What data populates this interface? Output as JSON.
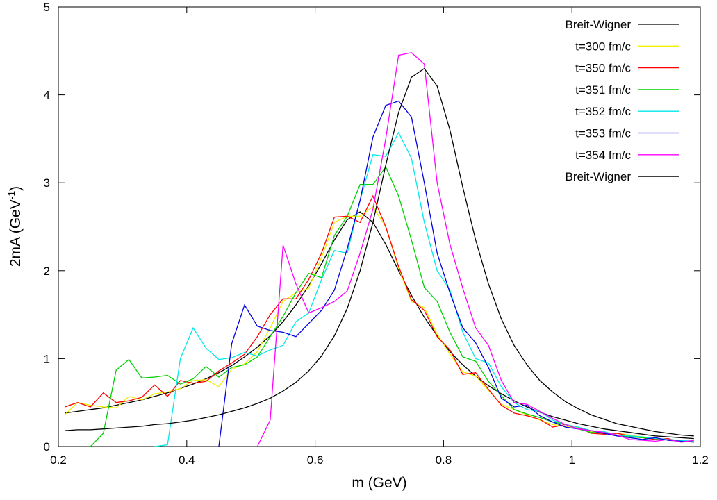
{
  "chart_data": {
    "type": "line",
    "x_label": "m (GeV)",
    "y_label": {
      "text": "2mA (GeV",
      "superscript": "-1",
      "suffix": ")"
    },
    "xlim": [
      0.2,
      1.2
    ],
    "xticks": [
      0.2,
      0.4,
      0.6,
      0.8,
      1,
      1.2
    ],
    "ylim": [
      0,
      5
    ],
    "yticks": [
      0,
      1,
      2,
      3,
      4,
      5
    ],
    "grid": false,
    "legend": "top-right",
    "x": [
      0.21,
      0.23,
      0.25,
      0.27,
      0.29,
      0.31,
      0.33,
      0.35,
      0.37,
      0.39,
      0.41,
      0.43,
      0.45,
      0.47,
      0.49,
      0.51,
      0.53,
      0.55,
      0.57,
      0.59,
      0.61,
      0.63,
      0.65,
      0.67,
      0.69,
      0.71,
      0.73,
      0.75,
      0.77,
      0.79,
      0.81,
      0.83,
      0.85,
      0.87,
      0.89,
      0.91,
      0.93,
      0.95,
      0.97,
      0.99,
      1.01,
      1.03,
      1.05,
      1.07,
      1.09,
      1.11,
      1.13,
      1.15,
      1.17,
      1.19
    ],
    "series": [
      {
        "name": "Breit-Wigner",
        "color": "#000000",
        "values": [
          0.38,
          0.4,
          0.42,
          0.44,
          0.47,
          0.5,
          0.53,
          0.57,
          0.61,
          0.66,
          0.71,
          0.77,
          0.84,
          0.92,
          1.02,
          1.13,
          1.26,
          1.42,
          1.61,
          1.83,
          2.08,
          2.35,
          2.58,
          2.67,
          2.55,
          2.3,
          2.0,
          1.72,
          1.47,
          1.26,
          1.08,
          0.93,
          0.8,
          0.69,
          0.6,
          0.52,
          0.45,
          0.39,
          0.34,
          0.3,
          0.26,
          0.23,
          0.2,
          0.18,
          0.16,
          0.14,
          0.12,
          0.11,
          0.1,
          0.09
        ]
      },
      {
        "name": "t=300 fm/c",
        "color": "#f0f000",
        "values": [
          0.36,
          0.5,
          0.47,
          0.45,
          0.44,
          0.57,
          0.53,
          0.6,
          0.62,
          0.66,
          0.75,
          0.76,
          0.68,
          0.88,
          0.94,
          1.08,
          1.35,
          1.65,
          1.75,
          1.8,
          2.15,
          2.55,
          2.62,
          2.62,
          2.73,
          2.5,
          2.03,
          1.65,
          1.58,
          1.28,
          1.05,
          0.85,
          0.8,
          0.64,
          0.48,
          0.42,
          0.36,
          0.3,
          0.25,
          0.23,
          0.21,
          0.17,
          0.14,
          0.15,
          0.13,
          0.11,
          0.09,
          0.08,
          0.06,
          0.05
        ]
      },
      {
        "name": "t=350 fm/c",
        "color": "#ff0000",
        "values": [
          0.45,
          0.5,
          0.45,
          0.61,
          0.5,
          0.52,
          0.56,
          0.7,
          0.57,
          0.75,
          0.72,
          0.74,
          0.86,
          0.95,
          1.05,
          1.25,
          1.5,
          1.68,
          1.68,
          1.9,
          2.2,
          2.61,
          2.62,
          2.55,
          2.85,
          2.5,
          2.05,
          1.67,
          1.55,
          1.25,
          1.1,
          0.82,
          0.84,
          0.65,
          0.47,
          0.38,
          0.35,
          0.31,
          0.22,
          0.25,
          0.22,
          0.15,
          0.14,
          0.15,
          0.12,
          0.1,
          0.08,
          0.09,
          0.05,
          0.06
        ]
      },
      {
        "name": "t=351 fm/c",
        "color": "#00d000",
        "values": [
          null,
          null,
          0,
          0.15,
          0.87,
          0.99,
          0.78,
          0.79,
          0.81,
          0.71,
          0.77,
          0.91,
          0.79,
          0.9,
          0.93,
          1.02,
          1.25,
          1.48,
          1.75,
          1.97,
          1.92,
          2.4,
          2.62,
          2.98,
          2.98,
          3.18,
          2.85,
          2.35,
          1.81,
          1.65,
          1.3,
          1.02,
          0.97,
          0.74,
          0.58,
          0.42,
          0.37,
          0.33,
          0.28,
          0.25,
          0.2,
          0.16,
          0.15,
          0.13,
          0.11,
          0.1,
          0.09,
          0.08,
          0.06,
          0.05
        ]
      },
      {
        "name": "t=352 fm/c",
        "color": "#00e8e8",
        "values": [
          null,
          null,
          null,
          null,
          null,
          null,
          null,
          0,
          0.02,
          1.0,
          1.35,
          1.12,
          0.99,
          1.01,
          1.07,
          1.03,
          1.1,
          1.15,
          1.42,
          1.52,
          1.9,
          2.23,
          2.2,
          2.8,
          3.32,
          3.3,
          3.57,
          3.28,
          2.55,
          2.0,
          1.78,
          1.3,
          1.0,
          0.95,
          0.68,
          0.5,
          0.42,
          0.4,
          0.3,
          0.25,
          0.22,
          0.18,
          0.17,
          0.13,
          0.12,
          0.11,
          0.09,
          0.08,
          0.07,
          0.06
        ]
      },
      {
        "name": "t=353 fm/c",
        "color": "#0000e0",
        "values": [
          null,
          null,
          null,
          null,
          null,
          null,
          null,
          null,
          null,
          null,
          null,
          null,
          0,
          1.17,
          1.61,
          1.37,
          1.32,
          1.3,
          1.25,
          1.4,
          1.55,
          1.78,
          2.25,
          2.8,
          3.52,
          3.88,
          3.93,
          3.75,
          3.0,
          2.2,
          1.75,
          1.35,
          1.18,
          0.9,
          0.55,
          0.45,
          0.47,
          0.35,
          0.28,
          0.22,
          0.2,
          0.18,
          0.15,
          0.12,
          0.1,
          0.08,
          0.1,
          0.07,
          0.06,
          0.05
        ]
      },
      {
        "name": "t=354 fm/c",
        "color": "#ff00ff",
        "values": [
          null,
          null,
          null,
          null,
          null,
          null,
          null,
          null,
          null,
          null,
          null,
          null,
          null,
          null,
          null,
          0,
          0.3,
          2.29,
          1.85,
          1.52,
          1.58,
          1.65,
          1.77,
          2.2,
          2.7,
          3.5,
          4.45,
          4.48,
          4.35,
          3.0,
          2.3,
          1.8,
          1.35,
          1.15,
          0.75,
          0.5,
          0.48,
          0.4,
          0.32,
          0.25,
          0.2,
          0.18,
          0.16,
          0.13,
          0.08,
          0.07,
          0.06,
          0.08,
          0.05,
          0.07
        ]
      },
      {
        "name": "Breit-Wigner",
        "color": "#000000",
        "values": [
          0.18,
          0.19,
          0.19,
          0.2,
          0.21,
          0.22,
          0.23,
          0.25,
          0.26,
          0.28,
          0.3,
          0.33,
          0.36,
          0.4,
          0.44,
          0.49,
          0.55,
          0.63,
          0.73,
          0.86,
          1.03,
          1.26,
          1.57,
          2.0,
          2.55,
          3.2,
          3.8,
          4.2,
          4.3,
          4.1,
          3.6,
          2.95,
          2.35,
          1.85,
          1.45,
          1.15,
          0.93,
          0.75,
          0.62,
          0.51,
          0.43,
          0.36,
          0.31,
          0.26,
          0.23,
          0.2,
          0.17,
          0.15,
          0.13,
          0.12
        ]
      }
    ]
  }
}
